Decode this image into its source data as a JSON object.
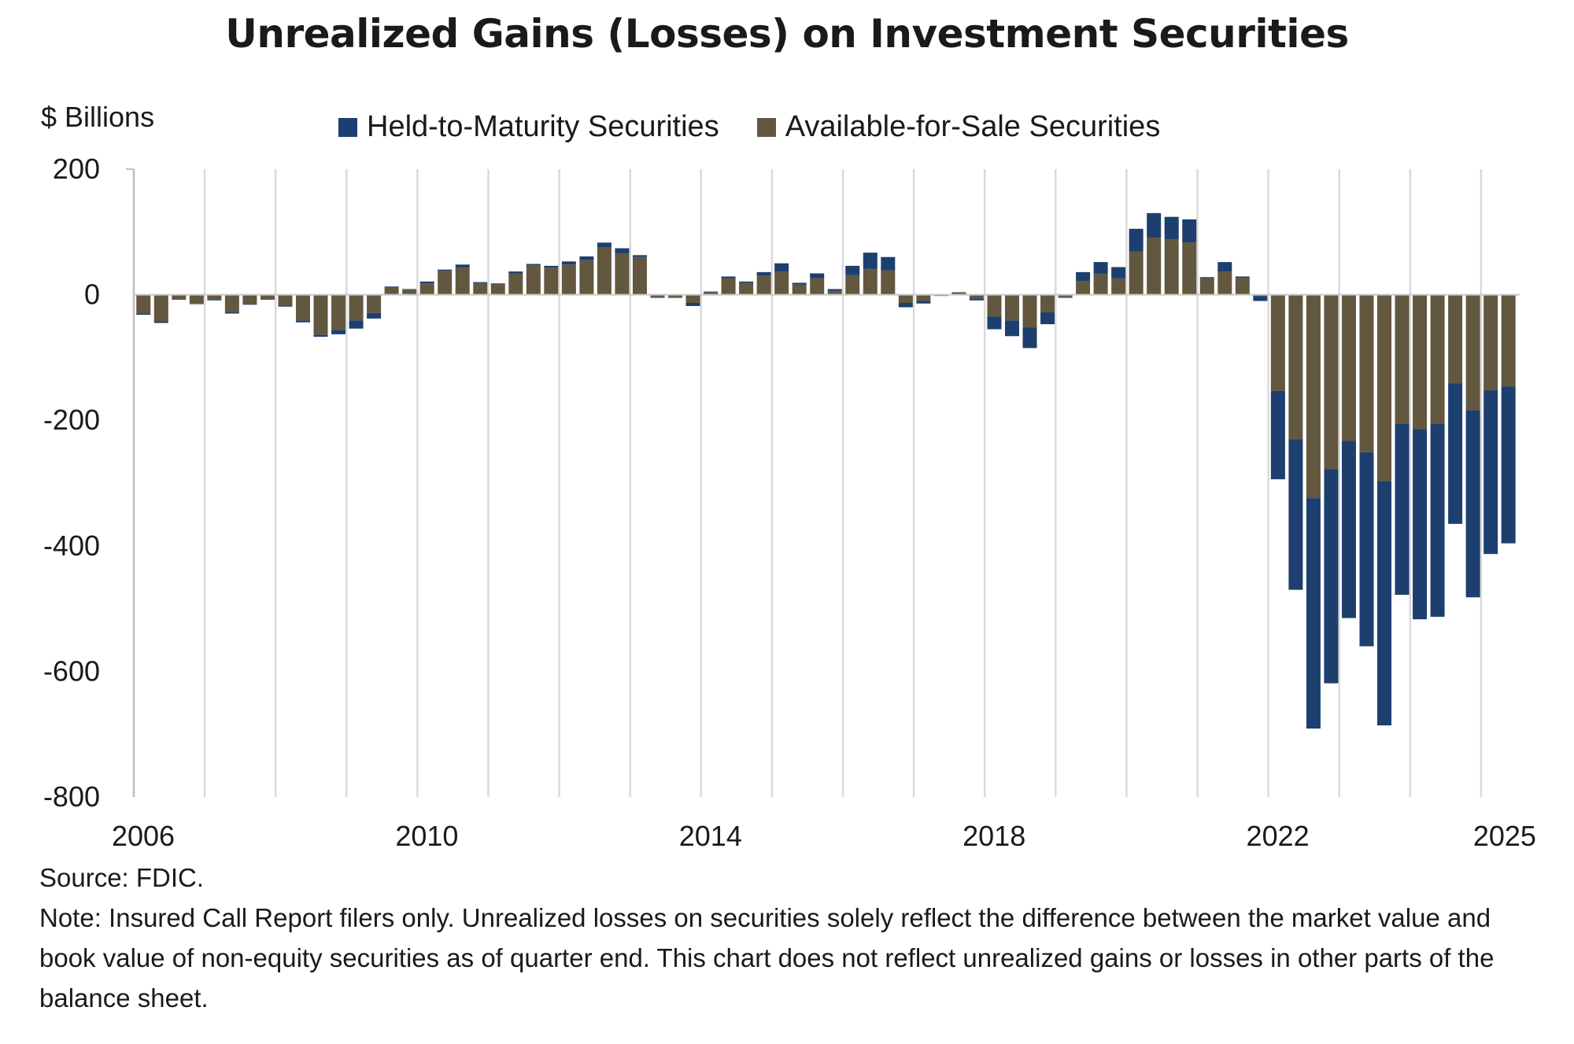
{
  "chart_data": {
    "type": "bar",
    "stacked": true,
    "title": "Unrealized Gains (Losses) on Investment Securities",
    "ylabel": "$ Billions",
    "ylim": [
      -800,
      200
    ],
    "yticks": [
      200,
      0,
      -200,
      -400,
      -600,
      -800
    ],
    "xtick_labels": [
      "2006",
      "2010",
      "2014",
      "2018",
      "2022",
      "2025"
    ],
    "x_start": "2006Q1",
    "x_end": "2025Q2",
    "grid": "vertical gridlines at each year",
    "legend_position": "top",
    "series": [
      {
        "name": "Held-to-Maturity Securities",
        "color": "#1c3f6e",
        "values": [
          -2,
          -3,
          -1,
          -1,
          -1,
          -2,
          -1,
          -1,
          -2,
          -3,
          -3,
          -7,
          -13,
          -9,
          1,
          1,
          3,
          2,
          5,
          2,
          1,
          3,
          2,
          3,
          5,
          6,
          8,
          8,
          3,
          -1,
          -1,
          -5,
          1,
          3,
          2,
          6,
          13,
          3,
          8,
          3,
          15,
          26,
          21,
          -7,
          -4,
          0,
          0,
          -3,
          -20,
          -25,
          -33,
          -19,
          -1,
          14,
          19,
          18,
          36,
          39,
          36,
          37,
          2,
          15,
          2,
          -8,
          -141,
          -240,
          -367,
          -341,
          -282,
          -309,
          -389,
          -273,
          -303,
          -308,
          -224,
          -298,
          -261,
          -250
        ]
      },
      {
        "name": "Available-for-Sale Securities",
        "color": "#63573f",
        "values": [
          -30,
          -42,
          -7,
          -14,
          -8,
          -28,
          -15,
          -7,
          -17,
          -41,
          -64,
          -56,
          -41,
          -29,
          12,
          8,
          18,
          38,
          43,
          18,
          17,
          34,
          47,
          43,
          48,
          55,
          75,
          66,
          60,
          -4,
          -4,
          -13,
          4,
          26,
          19,
          30,
          37,
          16,
          26,
          6,
          31,
          41,
          39,
          -13,
          -10,
          -2,
          4,
          -6,
          -35,
          -41,
          -52,
          -28,
          -4,
          22,
          33,
          26,
          69,
          91,
          88,
          83,
          26,
          37,
          27,
          -2,
          -153,
          -230,
          -324,
          -278,
          -233,
          -251,
          -297,
          -205,
          -214,
          -205,
          -141,
          -184,
          -152,
          -146
        ]
      }
    ]
  },
  "source": "Source: FDIC.",
  "note": "Note: Insured Call Report filers only. Unrealized losses on securities solely reflect the difference between the market value and book value of non-equity securities as of quarter end. This chart does not reflect unrealized gains or losses in other parts of the balance sheet."
}
